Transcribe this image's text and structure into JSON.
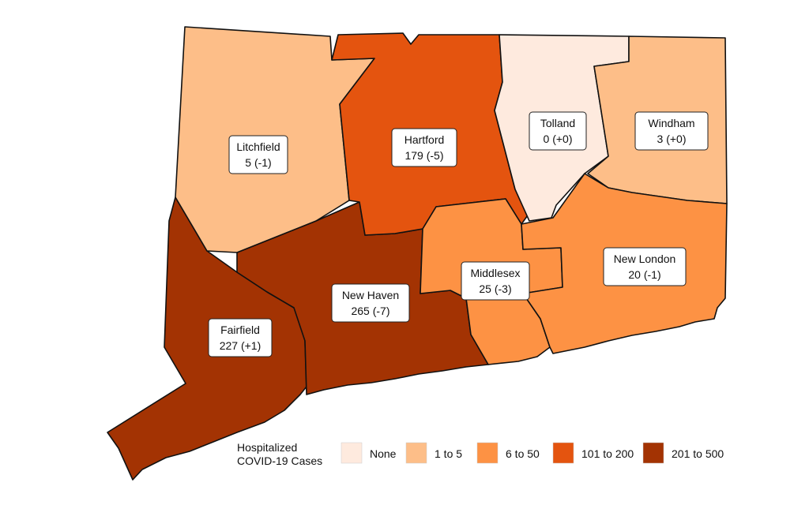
{
  "legend": {
    "title_line1": "Hospitalized",
    "title_line2": "COVID-19 Cases",
    "items": [
      {
        "label": "None",
        "color": "#feeade"
      },
      {
        "label": "1 to 5",
        "color": "#fdbe88"
      },
      {
        "label": "6 to 50",
        "color": "#fd9244"
      },
      {
        "label": "101 to 200",
        "color": "#e4540f"
      },
      {
        "label": "201 to 500",
        "color": "#a33303"
      }
    ]
  },
  "counties": [
    {
      "name": "Litchfield",
      "value": "5 (-1)",
      "color": "#fdbe88"
    },
    {
      "name": "Hartford",
      "value": "179 (-5)",
      "color": "#e4540f"
    },
    {
      "name": "Tolland",
      "value": "0 (+0)",
      "color": "#feeade"
    },
    {
      "name": "Windham",
      "value": "3 (+0)",
      "color": "#fdbe88"
    },
    {
      "name": "Fairfield",
      "value": "227 (+1)",
      "color": "#a33303"
    },
    {
      "name": "New Haven",
      "value": "265 (-7)",
      "color": "#a33303"
    },
    {
      "name": "Middlesex",
      "value": "25 (-3)",
      "color": "#fd9244"
    },
    {
      "name": "New London",
      "value": "20 (-1)",
      "color": "#fd9244"
    }
  ]
}
